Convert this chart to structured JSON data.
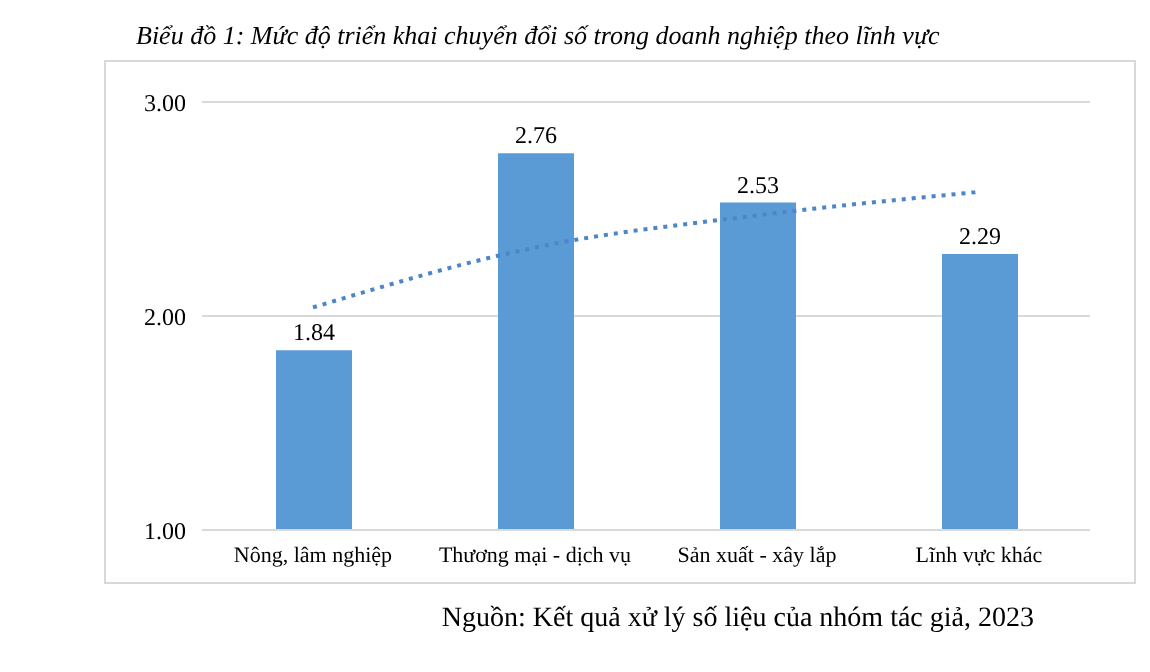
{
  "chart_data": {
    "type": "bar",
    "title": "Biểu đồ 1: Mức độ triển khai chuyển đổi số trong doanh nghiệp theo lĩnh vực",
    "categories": [
      "Nông, lâm nghiệp",
      "Thương mại - dịch vụ",
      "Sản xuất - xây lắp",
      "Lĩnh vực khác"
    ],
    "series": [
      {
        "color": "#5b9bd5",
        "values": [
          1.84,
          2.76,
          2.53,
          2.29
        ],
        "value_labels": [
          "1.84",
          "2.76",
          "2.53",
          "2.29"
        ]
      },
      {
        "type": "line",
        "color": "#4a86c8",
        "line_style": "dotted",
        "marker": "none",
        "x": [
          "Nông, lâm nghiệp",
          "Thương mại - dịch vụ",
          "Sản xuất - xây lắp",
          "Lĩnh vực khác"
        ],
        "values": [
          2.04,
          2.32,
          2.47,
          2.58
        ]
      }
    ],
    "ylim": [
      1,
      3
    ],
    "yticks": [
      {
        "value": 1,
        "label": "1.00"
      },
      {
        "value": 2,
        "label": "2.00"
      },
      {
        "value": 3,
        "label": "3.00"
      }
    ],
    "grid": "y",
    "legend": false,
    "annotations": [
      "Nguồn: Kết quả xử lý số liệu của nhóm tác giả, 2023"
    ]
  }
}
